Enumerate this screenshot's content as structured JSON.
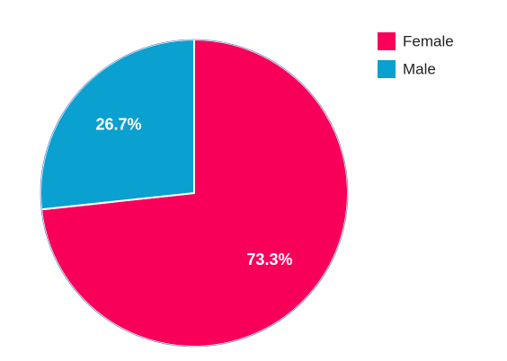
{
  "chart_data": {
    "type": "pie",
    "categories": [
      "Female",
      "Male"
    ],
    "values": [
      73.3,
      26.7
    ],
    "value_labels": [
      "73.3%",
      "26.7%"
    ],
    "colors": [
      "#f8005a",
      "#0aa0d0"
    ],
    "legend": "top-right"
  }
}
